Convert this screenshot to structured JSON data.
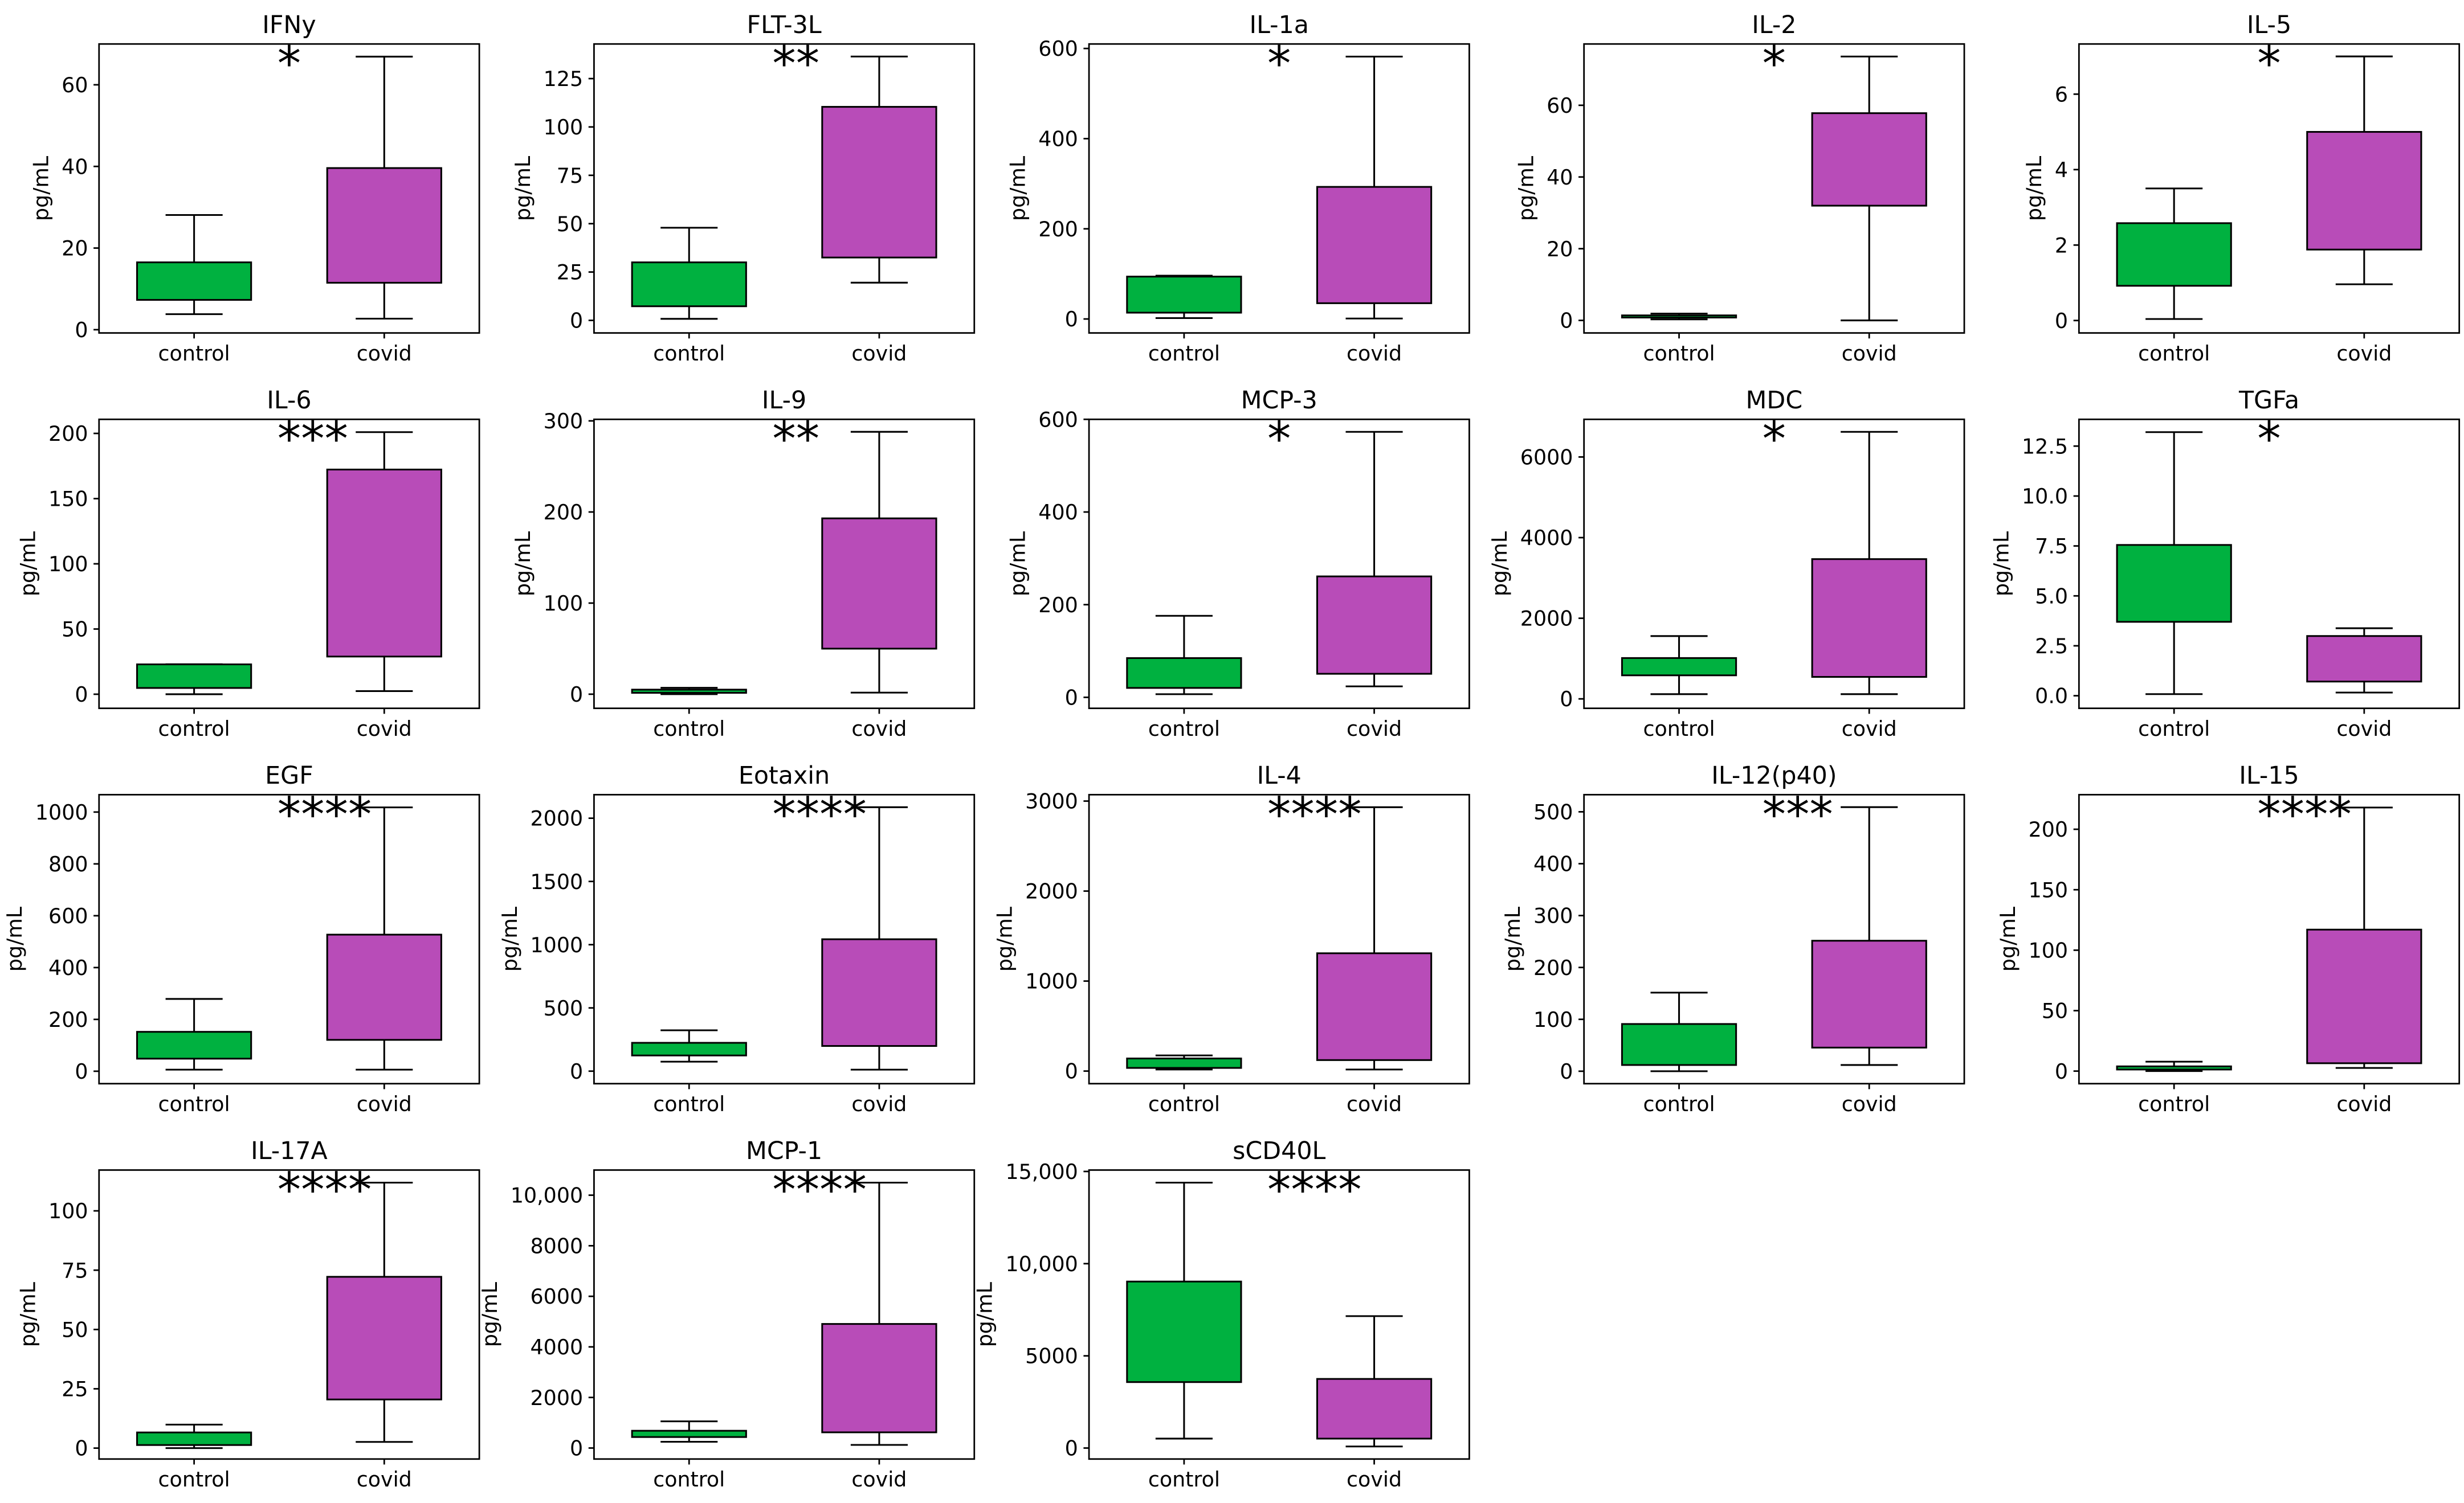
{
  "colors": {
    "control": "#00b140",
    "covid": "#b84cb8",
    "edge": "#000000"
  },
  "chart_data": [
    {
      "type": "box",
      "title": "IFNy",
      "ylabel": "pg/mL",
      "ylim": [
        -0.8,
        70.0
      ],
      "yticks": [
        0,
        20,
        40,
        60
      ],
      "ytick_labels": [
        "0",
        "20",
        "40",
        "60"
      ],
      "significance": "*",
      "boxes": [
        {
          "label": "control",
          "whislo": 3.8,
          "q1": 7.3,
          "q3": 16.5,
          "whishi": 28.1
        },
        {
          "label": "covid",
          "whislo": 2.7,
          "q1": 11.5,
          "q3": 39.6,
          "whishi": 66.9
        }
      ]
    },
    {
      "type": "box",
      "title": "FLT-3L",
      "ylabel": "pg/mL",
      "ylim": [
        -6.5,
        142.9
      ],
      "yticks": [
        0,
        25,
        50,
        75,
        100,
        125
      ],
      "ytick_labels": [
        "0",
        "25",
        "50",
        "75",
        "100",
        "125"
      ],
      "significance": "**",
      "boxes": [
        {
          "label": "control",
          "whislo": 0.8,
          "q1": 7.3,
          "q3": 30.0,
          "whishi": 47.9
        },
        {
          "label": "covid",
          "whislo": 19.5,
          "q1": 32.5,
          "q3": 110.4,
          "whishi": 136.4
        }
      ]
    },
    {
      "type": "box",
      "title": "IL-1a",
      "ylabel": "pg/mL",
      "ylim": [
        -31,
        610
      ],
      "yticks": [
        0,
        200,
        400,
        600
      ],
      "ytick_labels": [
        "0",
        "200",
        "400",
        "600"
      ],
      "significance": "*",
      "boxes": [
        {
          "label": "control",
          "whislo": 2,
          "q1": 14,
          "q3": 94,
          "whishi": 96
        },
        {
          "label": "covid",
          "whislo": 1,
          "q1": 35,
          "q3": 293,
          "whishi": 582
        }
      ]
    },
    {
      "type": "box",
      "title": "IL-2",
      "ylabel": "pg/mL",
      "ylim": [
        -3.5,
        77.1
      ],
      "yticks": [
        0,
        20,
        40,
        60
      ],
      "ytick_labels": [
        "0",
        "20",
        "40",
        "60"
      ],
      "significance": "*",
      "boxes": [
        {
          "label": "control",
          "whislo": 0.3,
          "q1": 0.8,
          "q3": 1.4,
          "whishi": 1.9
        },
        {
          "label": "covid",
          "whislo": 0,
          "q1": 32.0,
          "q3": 57.8,
          "whishi": 73.6
        }
      ]
    },
    {
      "type": "box",
      "title": "IL-5",
      "ylabel": "pg/mL",
      "ylim": [
        -0.33,
        7.33
      ],
      "yticks": [
        0,
        2,
        4,
        6
      ],
      "ytick_labels": [
        "0",
        "2",
        "4",
        "6"
      ],
      "significance": "*",
      "boxes": [
        {
          "label": "control",
          "whislo": 0.04,
          "q1": 0.92,
          "q3": 2.58,
          "whishi": 3.5
        },
        {
          "label": "covid",
          "whislo": 0.96,
          "q1": 1.88,
          "q3": 5.0,
          "whishi": 7.0
        }
      ]
    },
    {
      "type": "box",
      "title": "IL-6",
      "ylabel": "pg/mL",
      "ylim": [
        -10.8,
        210.8
      ],
      "yticks": [
        0,
        50,
        100,
        150,
        200
      ],
      "ytick_labels": [
        "0",
        "50",
        "100",
        "150",
        "200"
      ],
      "significance": "***",
      "boxes": [
        {
          "label": "control",
          "whislo": 0,
          "q1": 4.8,
          "q3": 22.9,
          "whishi": 23.0
        },
        {
          "label": "covid",
          "whislo": 2.4,
          "q1": 28.9,
          "q3": 172.3,
          "whishi": 201.0
        }
      ]
    },
    {
      "type": "box",
      "title": "IL-9",
      "ylabel": "pg/mL",
      "ylim": [
        -15.5,
        301.7
      ],
      "yticks": [
        0,
        100,
        200,
        300
      ],
      "ytick_labels": [
        "0",
        "100",
        "200",
        "300"
      ],
      "significance": "**",
      "boxes": [
        {
          "label": "control",
          "whislo": 0,
          "q1": 1.5,
          "q3": 5,
          "whishi": 7
        },
        {
          "label": "covid",
          "whislo": 1.7,
          "q1": 50,
          "q3": 193,
          "whishi": 288
        }
      ]
    },
    {
      "type": "box",
      "title": "MCP-3",
      "ylabel": "pg/mL",
      "ylim": [
        -23.7,
        600
      ],
      "yticks": [
        0,
        200,
        400,
        600
      ],
      "ytick_labels": [
        "0",
        "200",
        "400",
        "600"
      ],
      "significance": "*",
      "boxes": [
        {
          "label": "control",
          "whislo": 6.8,
          "q1": 20.3,
          "q3": 84.7,
          "whishi": 176
        },
        {
          "label": "covid",
          "whislo": 23.7,
          "q1": 50.8,
          "q3": 261,
          "whishi": 573
        }
      ]
    },
    {
      "type": "box",
      "title": "MDC",
      "ylabel": "pg/mL",
      "ylim": [
        -234,
        6934
      ],
      "yticks": [
        0,
        2000,
        4000,
        6000
      ],
      "ytick_labels": [
        "0",
        "2000",
        "4000",
        "6000"
      ],
      "significance": "*",
      "boxes": [
        {
          "label": "control",
          "whislo": 117,
          "q1": 584,
          "q3": 1013,
          "whishi": 1558
        },
        {
          "label": "covid",
          "whislo": 117,
          "q1": 545,
          "q3": 3467,
          "whishi": 6623
        }
      ]
    },
    {
      "type": "box",
      "title": "TGFa",
      "ylabel": "pg/mL",
      "ylim": [
        -0.63,
        13.84
      ],
      "yticks": [
        0,
        2.5,
        5,
        7.5,
        10,
        12.5
      ],
      "ytick_labels": [
        "0.0",
        "2.5",
        "5.0",
        "7.5",
        "10.0",
        "12.5"
      ],
      "significance": "*",
      "boxes": [
        {
          "label": "control",
          "whislo": 0.08,
          "q1": 3.7,
          "q3": 7.55,
          "whishi": 13.2
        },
        {
          "label": "covid",
          "whislo": 0.16,
          "q1": 0.71,
          "q3": 2.99,
          "whishi": 3.38
        }
      ]
    },
    {
      "type": "box",
      "title": "EGF",
      "ylabel": "pg/mL",
      "ylim": [
        -48,
        1067
      ],
      "yticks": [
        0,
        200,
        400,
        600,
        800,
        1000
      ],
      "ytick_labels": [
        "0",
        "200",
        "400",
        "600",
        "800",
        "1000"
      ],
      "significance": "****",
      "boxes": [
        {
          "label": "control",
          "whislo": 6,
          "q1": 48.5,
          "q3": 152,
          "whishi": 279
        },
        {
          "label": "covid",
          "whislo": 6,
          "q1": 121,
          "q3": 527,
          "whishi": 1018
        }
      ]
    },
    {
      "type": "box",
      "title": "Eotaxin",
      "ylabel": "pg/mL",
      "ylim": [
        -99,
        2186
      ],
      "yticks": [
        0,
        500,
        1000,
        1500,
        2000
      ],
      "ytick_labels": [
        "0",
        "500",
        "1000",
        "1500",
        "2000"
      ],
      "significance": "****",
      "boxes": [
        {
          "label": "control",
          "whislo": 75,
          "q1": 124,
          "q3": 224,
          "whishi": 323
        },
        {
          "label": "covid",
          "whislo": 12,
          "q1": 199,
          "q3": 1043,
          "whishi": 2087
        }
      ]
    },
    {
      "type": "box",
      "title": "IL-4",
      "ylabel": "pg/mL",
      "ylim": [
        -140,
        3071
      ],
      "yticks": [
        0,
        1000,
        2000,
        3000
      ],
      "ytick_labels": [
        "0",
        "1000",
        "2000",
        "3000"
      ],
      "significance": "****",
      "boxes": [
        {
          "label": "control",
          "whislo": 17,
          "q1": 35,
          "q3": 140,
          "whishi": 174
        },
        {
          "label": "covid",
          "whislo": 17,
          "q1": 122,
          "q3": 1309,
          "whishi": 2932
        }
      ]
    },
    {
      "type": "box",
      "title": "IL-12(p40)",
      "ylabel": "pg/mL",
      "ylim": [
        -24,
        533
      ],
      "yticks": [
        0,
        100,
        200,
        300,
        400,
        500
      ],
      "ytick_labels": [
        "0",
        "100",
        "200",
        "300",
        "400",
        "500"
      ],
      "significance": "***",
      "boxes": [
        {
          "label": "control",
          "whislo": 0,
          "q1": 12,
          "q3": 91,
          "whishi": 151.5
        },
        {
          "label": "covid",
          "whislo": 12,
          "q1": 45.5,
          "q3": 251.5,
          "whishi": 509
        }
      ]
    },
    {
      "type": "box",
      "title": "IL-15",
      "ylabel": "pg/mL",
      "ylim": [
        -10.4,
        228.6
      ],
      "yticks": [
        0,
        50,
        100,
        150,
        200
      ],
      "ytick_labels": [
        "0",
        "50",
        "100",
        "150",
        "200"
      ],
      "significance": "****",
      "boxes": [
        {
          "label": "control",
          "whislo": 0,
          "q1": 1.3,
          "q3": 3.9,
          "whishi": 7.8
        },
        {
          "label": "covid",
          "whislo": 2.6,
          "q1": 6.5,
          "q3": 117,
          "whishi": 218
        }
      ]
    },
    {
      "type": "box",
      "title": "IL-17A",
      "ylabel": "pg/mL",
      "ylim": [
        -4.6,
        117.2
      ],
      "yticks": [
        0,
        25,
        50,
        75,
        100
      ],
      "ytick_labels": [
        "0",
        "25",
        "50",
        "75",
        "100"
      ],
      "significance": "****",
      "boxes": [
        {
          "label": "control",
          "whislo": 0,
          "q1": 1.3,
          "q3": 6.6,
          "whishi": 9.9
        },
        {
          "label": "covid",
          "whislo": 2.6,
          "q1": 20.5,
          "q3": 72.2,
          "whishi": 111.9
        }
      ]
    },
    {
      "type": "box",
      "title": "MCP-1",
      "ylabel": "pg/mL",
      "ylim": [
        -435,
        10994
      ],
      "yticks": [
        0,
        2000,
        4000,
        6000,
        8000,
        10000
      ],
      "ytick_labels": [
        "0",
        "2000",
        "4000",
        "6000",
        "8000",
        "10,000"
      ],
      "significance": "****",
      "boxes": [
        {
          "label": "control",
          "whislo": 248,
          "q1": 435,
          "q3": 683,
          "whishi": 1056
        },
        {
          "label": "covid",
          "whislo": 124,
          "q1": 621,
          "q3": 4907,
          "whishi": 10497
        }
      ]
    },
    {
      "type": "box",
      "title": "sCD40L",
      "ylabel": "pg/mL",
      "ylim": [
        -596,
        15077
      ],
      "yticks": [
        0,
        5000,
        10000,
        15000
      ],
      "ytick_labels": [
        "0",
        "5000",
        "10,000",
        "15,000"
      ],
      "significance": "****",
      "boxes": [
        {
          "label": "control",
          "whislo": 511,
          "q1": 3577,
          "q3": 9029,
          "whishi": 14395
        },
        {
          "label": "covid",
          "whislo": 85,
          "q1": 511,
          "q3": 3748,
          "whishi": 7155
        }
      ]
    }
  ]
}
